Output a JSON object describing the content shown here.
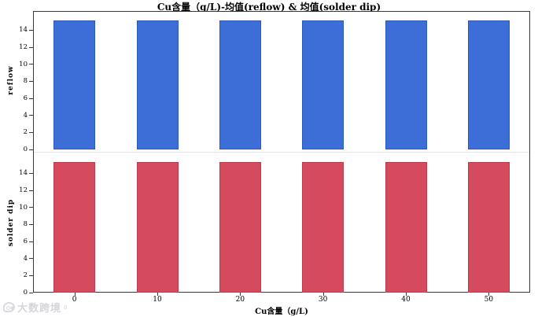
{
  "watermark": {
    "text": "大数跨境",
    "sup": "0",
    "logo": "bubble-logo",
    "color": "#c6c7d0"
  },
  "chart_data": {
    "type": "bar",
    "title": "Cu含量（g/L)-均值(reflow) & 均值(solder dip)",
    "xlabel": "Cu含量（g/L)",
    "categories": [
      "0",
      "10",
      "20",
      "30",
      "40",
      "50"
    ],
    "legend": "none",
    "grid": false,
    "panels": [
      {
        "name": "reflow",
        "ylabel": "reflow",
        "series_label": "均值(reflow)",
        "values": [
          15.1,
          15.1,
          15.1,
          15.1,
          15.1,
          15.1
        ],
        "yticks": [
          0,
          2,
          4,
          6,
          8,
          10,
          12,
          14
        ],
        "ylim": [
          0,
          16.5
        ],
        "bar_color": "#3d6ed8",
        "bar_border": "#2a59c0"
      },
      {
        "name": "solder-dip",
        "ylabel": "solder dip",
        "series_label": "均值(solder dip)",
        "values": [
          15.3,
          15.3,
          15.3,
          15.3,
          15.3,
          15.3
        ],
        "yticks": [
          0,
          2,
          4,
          6,
          8,
          10,
          12,
          14
        ],
        "ylim": [
          0,
          16.2
        ],
        "bar_color": "#d54a5c",
        "bar_border": "#bf3a4d"
      }
    ]
  }
}
